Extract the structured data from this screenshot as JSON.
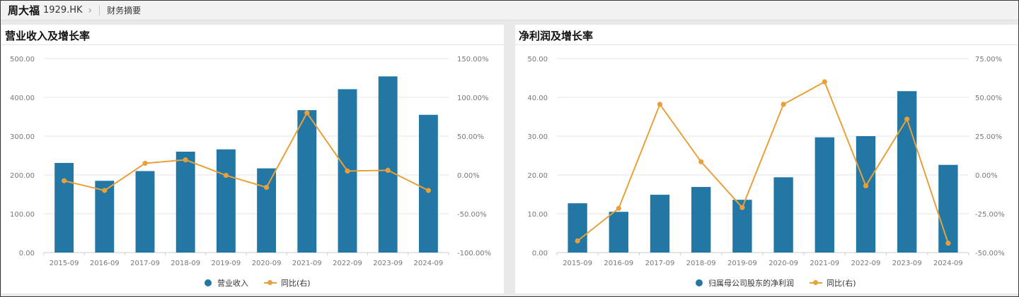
{
  "header": {
    "company_name": "周大福",
    "ticker": "1929.HK",
    "page_title": "财务摘要"
  },
  "colors": {
    "bar": "#2277a4",
    "line": "#e9a03a",
    "grid": "#e6e6e6"
  },
  "chart_data": [
    {
      "type": "bar",
      "title": "营业收入及增长率",
      "categories": [
        "2015-09",
        "2016-09",
        "2017-09",
        "2018-09",
        "2019-09",
        "2020-09",
        "2021-09",
        "2022-09",
        "2023-09",
        "2024-09"
      ],
      "series": [
        {
          "name": "营业收入",
          "type": "bar",
          "axis": "left",
          "values": [
            231,
            185,
            210,
            260,
            266,
            217,
            367,
            421,
            454,
            355
          ]
        },
        {
          "name": "同比(右)",
          "type": "line",
          "axis": "right",
          "values": [
            -7.5,
            -20.0,
            15.0,
            19.5,
            -0.5,
            -16.0,
            80.0,
            5.0,
            6.0,
            -20.0
          ]
        }
      ],
      "left_axis": {
        "min": 0,
        "max": 500,
        "ticks": [
          "0.00",
          "100.00",
          "200.00",
          "300.00",
          "400.00",
          "500.00"
        ]
      },
      "right_axis": {
        "min": -100,
        "max": 150,
        "ticks": [
          "-100.00%",
          "-50.00%",
          "0.00%",
          "50.00%",
          "100.00%",
          "150.00%"
        ]
      },
      "legend": {
        "bar_label": "营业收入",
        "line_label": "同比(右)",
        "position": "bottom"
      }
    },
    {
      "type": "bar",
      "title": "净利润及增长率",
      "categories": [
        "2015-09",
        "2016-09",
        "2017-09",
        "2018-09",
        "2019-09",
        "2020-09",
        "2021-09",
        "2022-09",
        "2023-09",
        "2024-09"
      ],
      "series": [
        {
          "name": "归属母公司股东的净利润",
          "type": "bar",
          "axis": "left",
          "values": [
            12.7,
            10.5,
            14.9,
            16.9,
            13.6,
            19.4,
            29.7,
            30.0,
            41.6,
            22.6
          ]
        },
        {
          "name": "同比(右)",
          "type": "line",
          "axis": "right",
          "values": [
            -42.5,
            -21.5,
            45.5,
            8.5,
            -21.0,
            45.5,
            60.0,
            -7.0,
            36.0,
            -44.0
          ]
        }
      ],
      "left_axis": {
        "min": 0,
        "max": 50,
        "ticks": [
          "0.00",
          "10.00",
          "20.00",
          "30.00",
          "40.00",
          "50.00"
        ]
      },
      "right_axis": {
        "min": -50,
        "max": 75,
        "ticks": [
          "-50.00%",
          "-25.00%",
          "0.00%",
          "25.00%",
          "50.00%",
          "75.00%"
        ]
      },
      "legend": {
        "bar_label": "归属母公司股东的净利润",
        "line_label": "同比(右)",
        "position": "bottom"
      }
    }
  ]
}
